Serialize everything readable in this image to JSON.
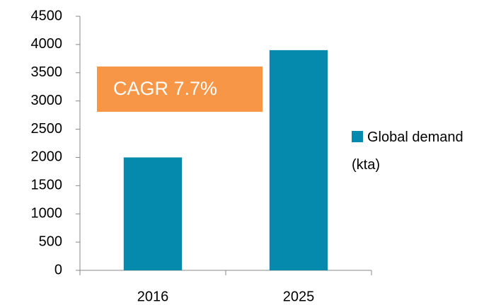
{
  "chart_data": {
    "type": "bar",
    "categories": [
      "2016",
      "2025"
    ],
    "series": [
      {
        "name": "Global demand (kta)",
        "color": "#0589ad",
        "values": [
          2000,
          3900
        ]
      }
    ],
    "ylim": [
      0,
      4500
    ],
    "yticks": [
      0,
      500,
      1000,
      1500,
      2000,
      2500,
      3000,
      3500,
      4000,
      4500
    ],
    "annotation": {
      "text": "CAGR 7.7%",
      "color": "#f79646"
    },
    "legend": "right"
  }
}
